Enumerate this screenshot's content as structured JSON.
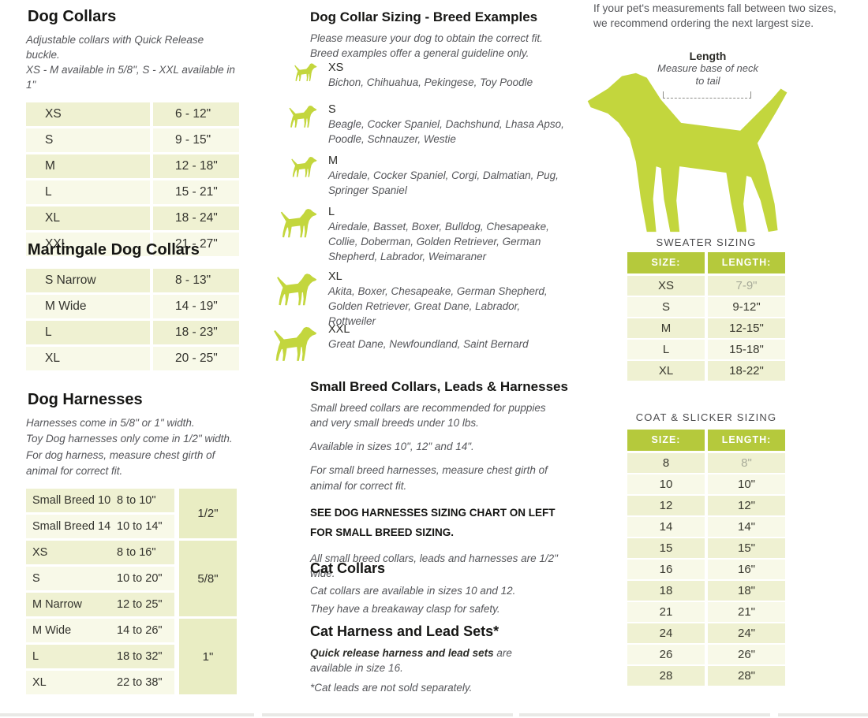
{
  "left": {
    "dog_collars": {
      "title": "Dog Collars",
      "subtitle_lines": [
        "Adjustable collars with Quick Release buckle.",
        "XS - M available in 5/8\", S - XXL available in 1\""
      ],
      "rows": [
        [
          "XS",
          "6 - 12\""
        ],
        [
          "S",
          "9 - 15\""
        ],
        [
          "M",
          "12 - 18\""
        ],
        [
          "L",
          "15 - 21\""
        ],
        [
          "XL",
          "18 - 24\""
        ],
        [
          "XXL",
          "21 - 27\""
        ]
      ]
    },
    "martingale": {
      "title": "Martingale Dog Collars",
      "rows": [
        [
          "S Narrow",
          "8 - 13\""
        ],
        [
          "M Wide",
          "14 - 19\""
        ],
        [
          "L",
          "18 - 23\""
        ],
        [
          "XL",
          "20 - 25\""
        ]
      ]
    },
    "harnesses": {
      "title": "Dog Harnesses",
      "notes": [
        "Harnesses come in 5/8\" or 1\" width.",
        "Toy Dog harnesses only come in 1/2\" width.",
        "For dog harness, measure chest girth of animal for correct fit."
      ],
      "rows": [
        [
          "Small Breed 10",
          "8 to 10\""
        ],
        [
          "Small Breed 14",
          "10 to 14\""
        ],
        [
          "XS",
          "8 to 16\""
        ],
        [
          "S",
          "10 to 20\""
        ],
        [
          "M Narrow",
          "12 to 25\""
        ],
        [
          "M Wide",
          "14 to 26\""
        ],
        [
          "L",
          "18 to 32\""
        ],
        [
          "XL",
          "22 to 38\""
        ]
      ],
      "width_groups": [
        {
          "label": "1/2\"",
          "span": 2
        },
        {
          "label": "5/8\"",
          "span": 3
        },
        {
          "label": "1\"",
          "span": 3
        }
      ]
    }
  },
  "middle": {
    "breed_examples": {
      "title": "Dog Collar Sizing - Breed Examples",
      "intro_lines": [
        "Please measure your dog to obtain the correct fit.",
        "Breed examples offer a general guideline only."
      ],
      "sizes": [
        {
          "label": "XS",
          "breeds": "Bichon, Chihuahua, Pekingese, Toy Poodle"
        },
        {
          "label": "S",
          "breeds": "Beagle, Cocker Spaniel, Dachshund, Lhasa Apso, Poodle, Schnauzer, Westie"
        },
        {
          "label": "M",
          "breeds": "Airedale, Cocker Spaniel, Corgi, Dalmatian, Pug, Springer Spaniel"
        },
        {
          "label": "L",
          "breeds": "Airedale, Basset, Boxer, Bulldog, Chesapeake, Collie, Doberman, Golden Retriever, German Shepherd, Labrador, Weimaraner"
        },
        {
          "label": "XL",
          "breeds": "Akita, Boxer, Chesapeake, German Shepherd, Golden Retriever, Great Dane, Labrador, Rottweiler"
        },
        {
          "label": "XXL",
          "breeds": "Great Dane, Newfoundland, Saint Bernard"
        }
      ]
    },
    "small_breed": {
      "title": "Small Breed Collars, Leads & Harnesses",
      "paragraphs": [
        "Small breed collars are recommended for puppies and very small breeds under 10 lbs.",
        "Available in sizes 10\", 12\" and 14\".",
        "For small breed harnesses, measure chest girth of animal for correct fit."
      ],
      "bold_note_lines": [
        "SEE DOG HARNESSES SIZING CHART ON LEFT",
        "FOR SMALL BREED SIZING."
      ],
      "closing": "All small breed collars, leads and harnesses are 1/2\" wide."
    },
    "cat_collars": {
      "title": "Cat Collars",
      "lines": [
        "Cat collars are available in sizes 10 and 12.",
        "They have a breakaway clasp for safety."
      ]
    },
    "cat_harness": {
      "title": "Cat Harness and Lead Sets*",
      "bold_lead": "Quick release harness and lead sets",
      "rest": " are available in size 16.",
      "footnote": "*Cat leads are not sold separately."
    }
  },
  "right": {
    "note_lines": [
      "If your pet's measurements fall between two sizes,",
      "we recommend ordering the next largest size."
    ],
    "length_diagram": {
      "label": "Length",
      "caption_lines": [
        "Measure base of neck",
        "to tail"
      ]
    },
    "sweater": {
      "title": "SWEATER SIZING",
      "headers": [
        "SIZE:",
        "LENGTH:"
      ],
      "rows": [
        [
          "XS",
          "7-9\""
        ],
        [
          "S",
          "9-12\""
        ],
        [
          "M",
          "12-15\""
        ],
        [
          "L",
          "15-18\""
        ],
        [
          "XL",
          "18-22\""
        ]
      ]
    },
    "coat": {
      "title": "COAT & SLICKER SIZING",
      "headers": [
        "SIZE:",
        "LENGTH:"
      ],
      "rows": [
        [
          "8",
          "8\""
        ],
        [
          "10",
          "10\""
        ],
        [
          "12",
          "12\""
        ],
        [
          "14",
          "14\""
        ],
        [
          "15",
          "15\""
        ],
        [
          "16",
          "16\""
        ],
        [
          "18",
          "18\""
        ],
        [
          "21",
          "21\""
        ],
        [
          "24",
          "24\""
        ],
        [
          "26",
          "26\""
        ],
        [
          "28",
          "28\""
        ]
      ]
    }
  },
  "colors": {
    "lime": "#c3d63d",
    "table_header_green": "#b5c93c",
    "row_dark": "#eff1d2",
    "row_light": "#f8f9e8",
    "width_block": "#e9edc3"
  }
}
